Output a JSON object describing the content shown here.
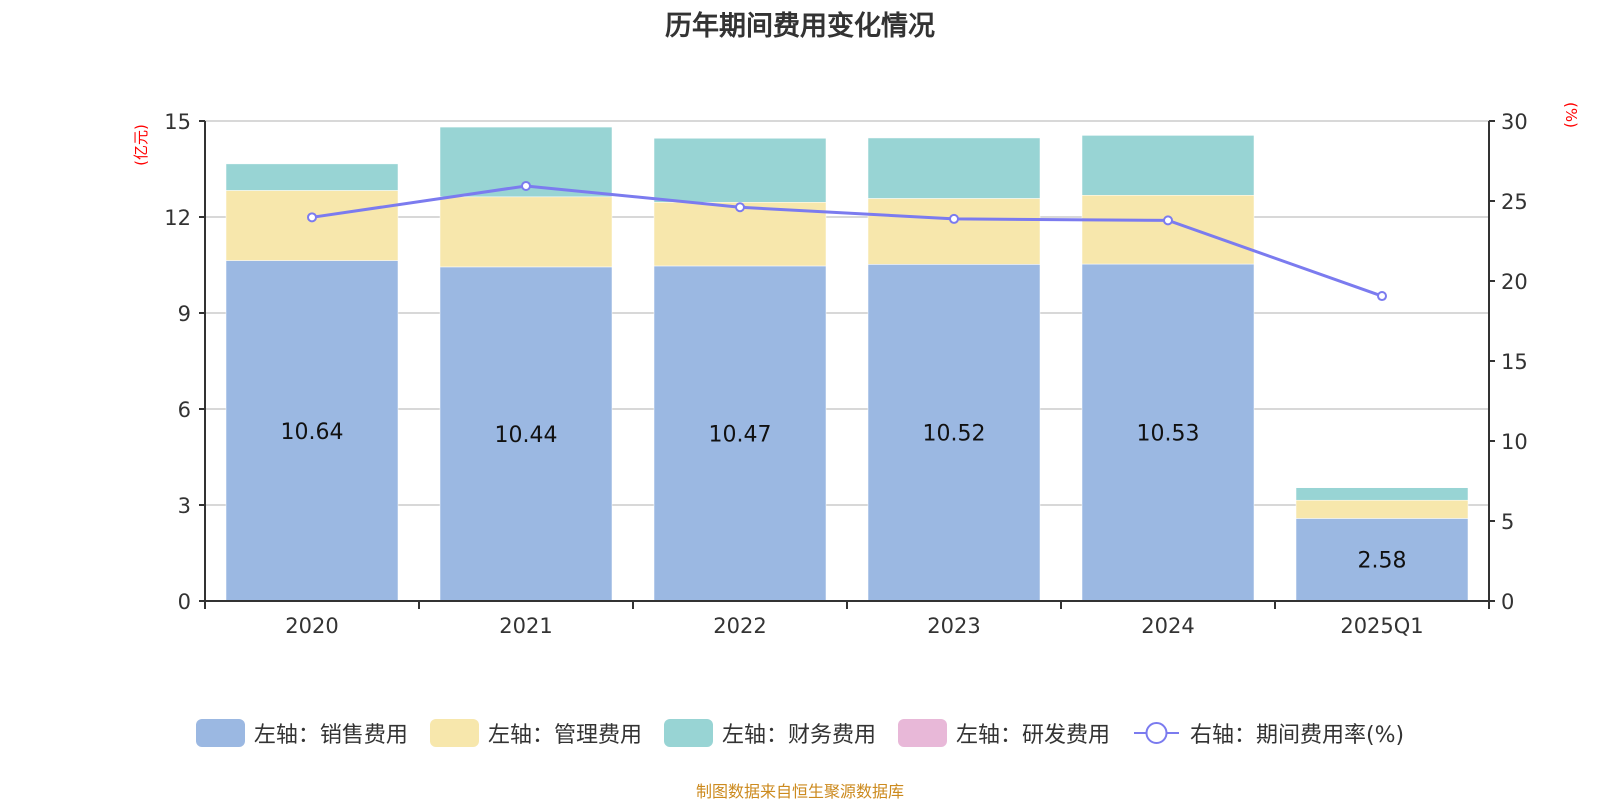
{
  "chart_data": {
    "type": "bar",
    "stacked": true,
    "title": "历年期间费用变化情况",
    "categories": [
      "2020",
      "2021",
      "2022",
      "2023",
      "2024",
      "2025Q1"
    ],
    "left_axis": {
      "unit": "(亿元)",
      "ylim": [
        0,
        15
      ],
      "ticks": [
        "0",
        "3",
        "6",
        "9",
        "12",
        "15"
      ]
    },
    "right_axis": {
      "unit": "(%)",
      "ylim": [
        0,
        30
      ],
      "ticks": [
        "0",
        "5",
        "10",
        "15",
        "20",
        "25",
        "30"
      ]
    },
    "grid": true,
    "series": [
      {
        "name": "左轴：销售费用",
        "axis": "left",
        "kind": "bar",
        "color": "#9bb8e2",
        "values": [
          10.64,
          10.44,
          10.47,
          10.52,
          10.53,
          2.58
        ],
        "labels": [
          "10.64",
          "10.44",
          "10.47",
          "10.52",
          "10.53",
          "2.58"
        ]
      },
      {
        "name": "左轴：管理费用",
        "axis": "left",
        "kind": "bar",
        "color": "#f7e7ac",
        "values": [
          2.19,
          2.19,
          1.99,
          2.06,
          2.15,
          0.57
        ]
      },
      {
        "name": "左轴：财务费用",
        "axis": "left",
        "kind": "bar",
        "color": "#98d4d4",
        "values": [
          0.83,
          2.18,
          2.0,
          1.89,
          1.87,
          0.39
        ]
      },
      {
        "name": "左轴：研发费用",
        "axis": "left",
        "kind": "bar",
        "color": "#e8b8d8",
        "values": [
          0,
          0,
          0,
          0,
          0,
          0
        ]
      },
      {
        "name": "右轴：期间费用率(%)",
        "axis": "right",
        "kind": "line",
        "color": "#7b7bef",
        "values": [
          23.98,
          25.94,
          24.61,
          23.88,
          23.79,
          19.06
        ]
      }
    ],
    "legend_position": "bottom",
    "source": "制图数据来自恒生聚源数据库"
  }
}
